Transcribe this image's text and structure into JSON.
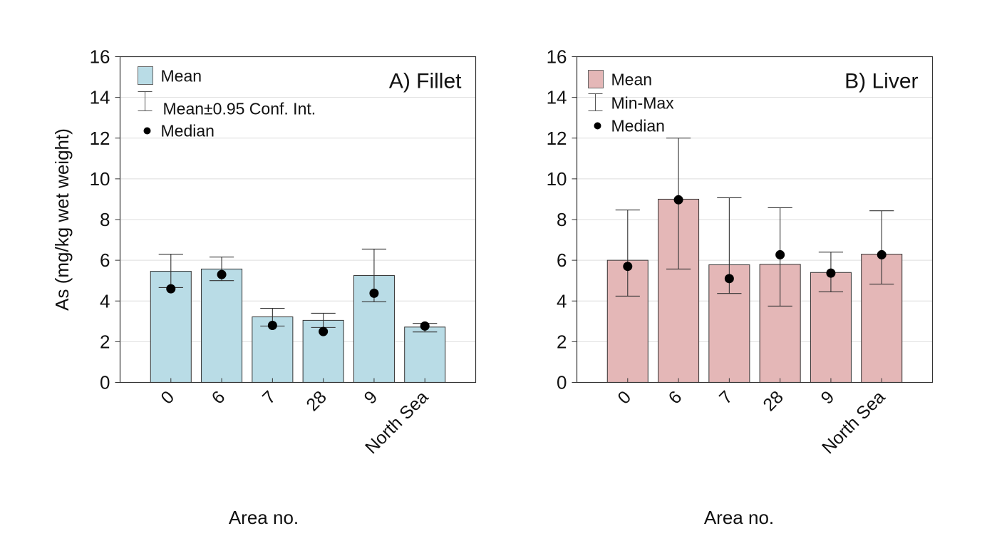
{
  "chart_data": [
    {
      "type": "bar",
      "panel": "A",
      "title": "A) Fillet",
      "xlabel": "Area no.",
      "ylabel": "As (mg/kg wet weight)",
      "ylim": [
        0,
        16
      ],
      "yticks": [
        "0",
        "2",
        "4",
        "6",
        "8",
        "10",
        "12",
        "14",
        "16"
      ],
      "grid": true,
      "legend_position": "top-left",
      "legend": {
        "bar": "Mean",
        "errorbar": "Mean±0.95 Conf. Int.",
        "point": "Median"
      },
      "colors": {
        "bar": "#b9dce6",
        "bar_edge": "#333333",
        "point": "#000000"
      },
      "categories": [
        "0",
        "6",
        "7",
        "28",
        "9",
        "North Sea"
      ],
      "series": [
        {
          "name": "Mean",
          "values": [
            5.46,
            5.57,
            3.22,
            3.05,
            5.25,
            2.72
          ]
        },
        {
          "name": "Upper",
          "values": [
            6.3,
            6.16,
            3.64,
            3.4,
            6.55,
            2.9
          ]
        },
        {
          "name": "Lower",
          "values": [
            4.66,
            5.0,
            2.77,
            2.7,
            3.96,
            2.48
          ]
        },
        {
          "name": "Median",
          "values": [
            4.6,
            5.3,
            2.8,
            2.5,
            4.38,
            2.77
          ]
        }
      ]
    },
    {
      "type": "bar",
      "panel": "B",
      "title": "B) Liver",
      "xlabel": "Area no.",
      "ylabel": "",
      "ylim": [
        0,
        16
      ],
      "yticks": [
        "0",
        "2",
        "4",
        "6",
        "8",
        "10",
        "12",
        "14",
        "16"
      ],
      "grid": true,
      "legend_position": "top-left",
      "legend": {
        "bar": "Mean",
        "errorbar": "Min-Max",
        "point": "Median"
      },
      "colors": {
        "bar": "#e4b7b7",
        "bar_edge": "#333333",
        "point": "#000000"
      },
      "categories": [
        "0",
        "6",
        "7",
        "28",
        "9",
        "North Sea"
      ],
      "series": [
        {
          "name": "Mean",
          "values": [
            6.0,
            9.0,
            5.78,
            5.8,
            5.4,
            6.3
          ]
        },
        {
          "name": "Upper",
          "values": [
            8.47,
            12.0,
            9.07,
            8.58,
            6.4,
            8.43
          ]
        },
        {
          "name": "Lower",
          "values": [
            4.24,
            5.57,
            4.37,
            3.75,
            4.45,
            4.83
          ]
        },
        {
          "name": "Median",
          "values": [
            5.7,
            8.97,
            5.1,
            6.27,
            5.37,
            6.27
          ]
        }
      ]
    }
  ]
}
